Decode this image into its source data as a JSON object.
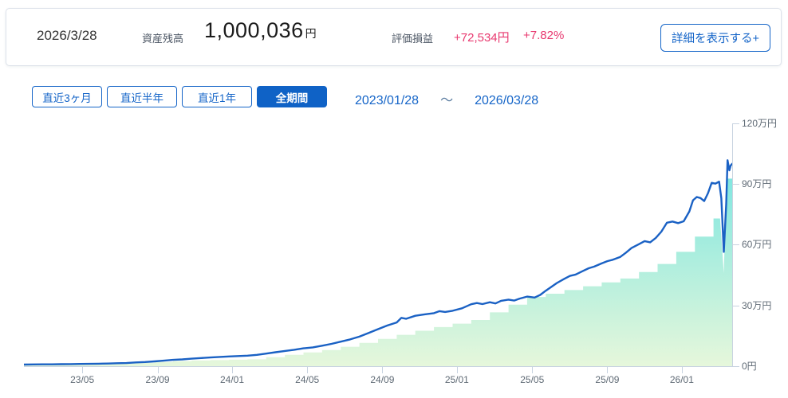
{
  "summary": {
    "date": "2026/3/28",
    "balance_label": "資産残高",
    "balance_value": "1,000,036",
    "balance_unit": "円",
    "pl_label": "評価損益",
    "pl_amount": "+72,534円",
    "pl_percent": "+7.82%",
    "detail_button": "詳細を表示する+"
  },
  "filters": {
    "buttons": [
      {
        "key": "3m",
        "label": "直近3ヶ月",
        "selected": false
      },
      {
        "key": "6m",
        "label": "直近半年",
        "selected": false
      },
      {
        "key": "1y",
        "label": "直近1年",
        "selected": false
      },
      {
        "key": "all",
        "label": "全期間",
        "selected": true
      }
    ],
    "range_start": "2023/01/28",
    "range_separator": "～",
    "range_end": "2026/03/28"
  },
  "colors": {
    "accent_blue": "#1565c8",
    "selected_button_bg": "#0f62c6",
    "profit_pink": "#e8386f",
    "line_blue": "#1a61c4",
    "area_gradient_top": "#82e7e0",
    "area_gradient_bottom": "#e6f7db",
    "axis": "#c8d3e0",
    "tick_label": "#5f6a75"
  },
  "chart_data": {
    "type": "line",
    "unit": "万円",
    "x_start_date": "2023/01/28",
    "x_end_date": "2026/03/28",
    "x_range_months": [
      0,
      38
    ],
    "y_range": [
      0,
      122
    ],
    "grid": false,
    "legend": "none",
    "y_ticks": [
      {
        "value": 0,
        "label": "0円"
      },
      {
        "value": 30,
        "label": "30万円"
      },
      {
        "value": 60,
        "label": "60万円"
      },
      {
        "value": 90,
        "label": "90万円"
      },
      {
        "value": 120,
        "label": "120万円"
      }
    ],
    "x_ticks": [
      {
        "t": 3.13,
        "label": "23/05"
      },
      {
        "t": 7.17,
        "label": "23/09"
      },
      {
        "t": 11.17,
        "label": "24/01"
      },
      {
        "t": 15.2,
        "label": "24/05"
      },
      {
        "t": 19.23,
        "label": "24/09"
      },
      {
        "t": 23.23,
        "label": "25/01"
      },
      {
        "t": 27.27,
        "label": "25/05"
      },
      {
        "t": 31.3,
        "label": "25/09"
      },
      {
        "t": 35.3,
        "label": "26/01"
      }
    ],
    "series": [
      {
        "name": "asset-balance-line",
        "type": "line",
        "points": [
          [
            0,
            0.8
          ],
          [
            0.5,
            0.85
          ],
          [
            1,
            0.9
          ],
          [
            1.5,
            0.92
          ],
          [
            2,
            1.0
          ],
          [
            2.5,
            1.02
          ],
          [
            3,
            1.1
          ],
          [
            3.5,
            1.15
          ],
          [
            4,
            1.2
          ],
          [
            4.5,
            1.3
          ],
          [
            5,
            1.45
          ],
          [
            5.5,
            1.55
          ],
          [
            6,
            1.85
          ],
          [
            6.5,
            2.05
          ],
          [
            7,
            2.35
          ],
          [
            7.5,
            2.7
          ],
          [
            8,
            3.1
          ],
          [
            8.5,
            3.35
          ],
          [
            9,
            3.7
          ],
          [
            9.5,
            4.0
          ],
          [
            10,
            4.3
          ],
          [
            10.5,
            4.55
          ],
          [
            11,
            4.8
          ],
          [
            11.5,
            5.0
          ],
          [
            12,
            5.2
          ],
          [
            12.5,
            5.6
          ],
          [
            13,
            6.2
          ],
          [
            13.5,
            6.9
          ],
          [
            14,
            7.5
          ],
          [
            14.5,
            8.1
          ],
          [
            15,
            8.8
          ],
          [
            15.5,
            9.3
          ],
          [
            16,
            10.1
          ],
          [
            16.5,
            11.0
          ],
          [
            17,
            12.1
          ],
          [
            17.5,
            13.2
          ],
          [
            18,
            14.6
          ],
          [
            18.5,
            16.4
          ],
          [
            19,
            18.3
          ],
          [
            19.5,
            20.1
          ],
          [
            20,
            21.6
          ],
          [
            20.25,
            23.9
          ],
          [
            20.5,
            23.4
          ],
          [
            21,
            24.9
          ],
          [
            21.5,
            25.6
          ],
          [
            22,
            26.2
          ],
          [
            22.3,
            27.2
          ],
          [
            22.6,
            26.8
          ],
          [
            23,
            27.4
          ],
          [
            23.5,
            28.6
          ],
          [
            24,
            30.6
          ],
          [
            24.3,
            31.2
          ],
          [
            24.6,
            30.7
          ],
          [
            25,
            31.6
          ],
          [
            25.3,
            31.0
          ],
          [
            25.6,
            32.3
          ],
          [
            26,
            32.9
          ],
          [
            26.3,
            32.4
          ],
          [
            26.6,
            33.4
          ],
          [
            27,
            34.4
          ],
          [
            27.4,
            33.9
          ],
          [
            27.7,
            35.2
          ],
          [
            28,
            37.3
          ],
          [
            28.3,
            39.2
          ],
          [
            28.6,
            41.1
          ],
          [
            29,
            43.2
          ],
          [
            29.3,
            44.6
          ],
          [
            29.6,
            45.3
          ],
          [
            30,
            47.1
          ],
          [
            30.3,
            48.4
          ],
          [
            30.6,
            49.2
          ],
          [
            31,
            50.8
          ],
          [
            31.3,
            51.9
          ],
          [
            31.6,
            52.6
          ],
          [
            32,
            54.0
          ],
          [
            32.3,
            56.1
          ],
          [
            32.6,
            58.4
          ],
          [
            33,
            60.3
          ],
          [
            33.3,
            61.8
          ],
          [
            33.6,
            61.2
          ],
          [
            33.9,
            63.4
          ],
          [
            34.2,
            66.5
          ],
          [
            34.5,
            70.9
          ],
          [
            34.8,
            71.5
          ],
          [
            35.1,
            70.7
          ],
          [
            35.4,
            71.6
          ],
          [
            35.7,
            76.5
          ],
          [
            35.9,
            82.0
          ],
          [
            36.1,
            83.6
          ],
          [
            36.3,
            83.1
          ],
          [
            36.5,
            81.6
          ],
          [
            36.7,
            85.4
          ],
          [
            36.9,
            90.6
          ],
          [
            37.1,
            90.2
          ],
          [
            37.3,
            91.2
          ],
          [
            37.42,
            83.0
          ],
          [
            37.55,
            56.5
          ],
          [
            37.68,
            80.0
          ],
          [
            37.75,
            101.8
          ],
          [
            37.85,
            96.8
          ],
          [
            37.92,
            99.2
          ],
          [
            38,
            100.0
          ]
        ]
      },
      {
        "name": "invested-principal-area",
        "type": "area",
        "interpolation": "step-after",
        "monthly_values": [
          0.8,
          0.9,
          1.0,
          1.1,
          1.2,
          1.4,
          1.7,
          2.1,
          2.5,
          2.8,
          3.0,
          3.2,
          3.4,
          4.4,
          5.6,
          6.8,
          8.0,
          9.6,
          11.5,
          13.5,
          15.5,
          17.5,
          19.3,
          21.0,
          22.8,
          26.6,
          30.4,
          34.2,
          35.8,
          37.6,
          39.5,
          41.4,
          43.3,
          46.5,
          50.5,
          56.5,
          64.0,
          73.0
        ],
        "tail_points": [
          [
            37.35,
            73.0
          ],
          [
            37.55,
            46.0
          ],
          [
            37.7,
            92.7
          ],
          [
            38,
            92.7
          ]
        ]
      }
    ]
  }
}
